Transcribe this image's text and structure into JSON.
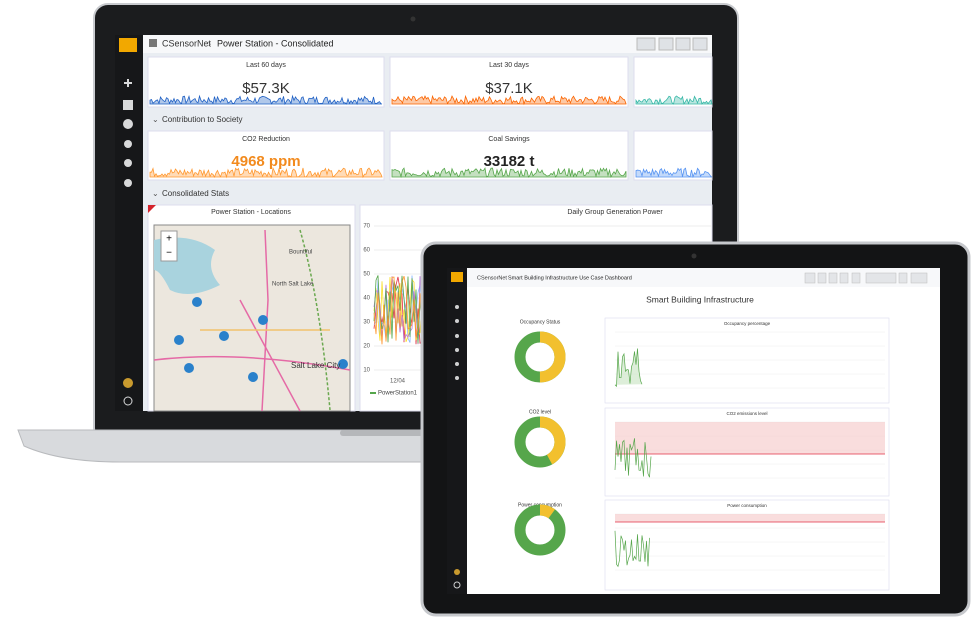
{
  "laptop": {
    "brand": "CSensorNet",
    "dashboard": "Power Station - Consolidated",
    "stats": [
      {
        "title": "Last 60 days",
        "value": "$57.3K"
      },
      {
        "title": "Last 30 days",
        "value": "$37.1K"
      }
    ],
    "rows": [
      {
        "title": "Contribution to Society",
        "stats": [
          {
            "title": "CO2 Reduction",
            "value": "4968 ppm"
          },
          {
            "title": "Coal Savings",
            "value": "33182 t"
          }
        ]
      },
      {
        "title": "Consolidated Stats",
        "map": {
          "title": "Power Station - Locations",
          "labels": [
            "Bountiful",
            "North Salt Lake",
            "Salt Lake City"
          ]
        },
        "graph": {
          "title": "Daily Group Generation Power",
          "yticks": [
            "70",
            "60",
            "50",
            "40",
            "30",
            "20",
            "10"
          ],
          "xticks": [
            "12/04"
          ],
          "legend": [
            "PowerStation1"
          ]
        }
      }
    ]
  },
  "tablet": {
    "brand": "CSensorNet",
    "dashboard": "Smart Building Infrastructure Use Case Dashboard",
    "title": "Smart Building Infrastructure",
    "donuts": [
      "Occupancy Status",
      "CO2 level",
      "Power consumption"
    ],
    "graphs": [
      "Occupancy percentage",
      "CO2 emissions level",
      "Power consumption"
    ]
  }
}
